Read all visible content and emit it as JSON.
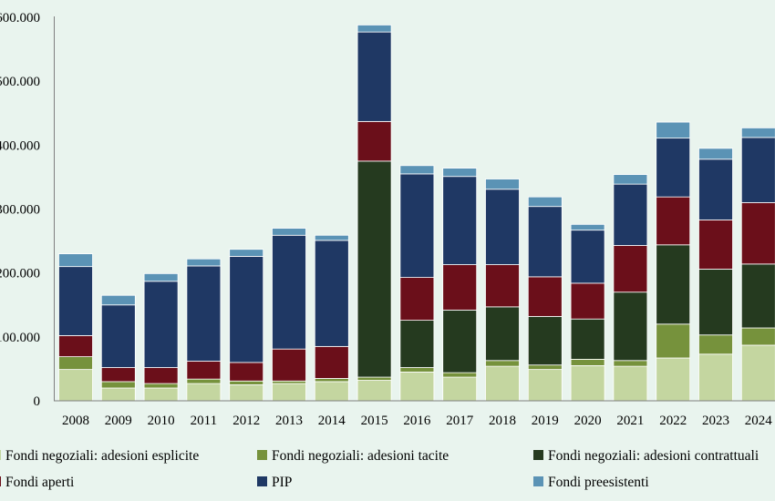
{
  "chart_data": {
    "type": "bar",
    "stacked": true,
    "title": "",
    "xlabel": "",
    "ylabel": "",
    "ylim": [
      0,
      600000
    ],
    "y_ticks": [
      "0",
      "100.000",
      "200.000",
      "300.000",
      "400.000",
      "500.000",
      "600.000"
    ],
    "categories": [
      "2008",
      "2009",
      "2010",
      "2011",
      "2012",
      "2013",
      "2014",
      "2015",
      "2016",
      "2017",
      "2018",
      "2019",
      "2020",
      "2021",
      "2022",
      "2023",
      "2024"
    ],
    "series": [
      {
        "name": "Fondi negoziali: adesioni esplicite",
        "color": "#c4d6a0",
        "values": [
          49000,
          20000,
          20000,
          27000,
          25000,
          27000,
          30000,
          32000,
          45000,
          37000,
          54000,
          49000,
          55000,
          54000,
          67000,
          73000,
          87000
        ]
      },
      {
        "name": "Fondi negoziali: adesioni tacite",
        "color": "#76923c",
        "values": [
          20000,
          10000,
          7000,
          7000,
          6000,
          4000,
          5000,
          5000,
          7000,
          7000,
          9000,
          7000,
          10000,
          9000,
          53000,
          30000,
          27000
        ]
      },
      {
        "name": "Fondi negoziali: adesioni contrattuali",
        "color": "#253a1f",
        "values": [
          0,
          0,
          0,
          0,
          0,
          0,
          0,
          338000,
          74000,
          98000,
          84000,
          76000,
          63000,
          107000,
          124000,
          103000,
          100000
        ]
      },
      {
        "name": "Fondi aperti",
        "color": "#6b0f1a",
        "values": [
          33000,
          22000,
          25000,
          28000,
          29000,
          50000,
          50000,
          62000,
          67000,
          71000,
          66000,
          62000,
          56000,
          73000,
          75000,
          77000,
          96000
        ]
      },
      {
        "name": "PIP",
        "color": "#1f3864",
        "values": [
          108000,
          98000,
          135000,
          149000,
          166000,
          178000,
          166000,
          140000,
          162000,
          138000,
          118000,
          110000,
          83000,
          96000,
          92000,
          95000,
          102000
        ]
      },
      {
        "name": "Fondi preesistenti",
        "color": "#5b93b5",
        "values": [
          20000,
          15000,
          12000,
          11000,
          11000,
          11000,
          8000,
          11000,
          13000,
          13000,
          16000,
          15000,
          9000,
          15000,
          25000,
          17000,
          15000
        ]
      }
    ],
    "legend_position": "bottom",
    "grid": false
  }
}
